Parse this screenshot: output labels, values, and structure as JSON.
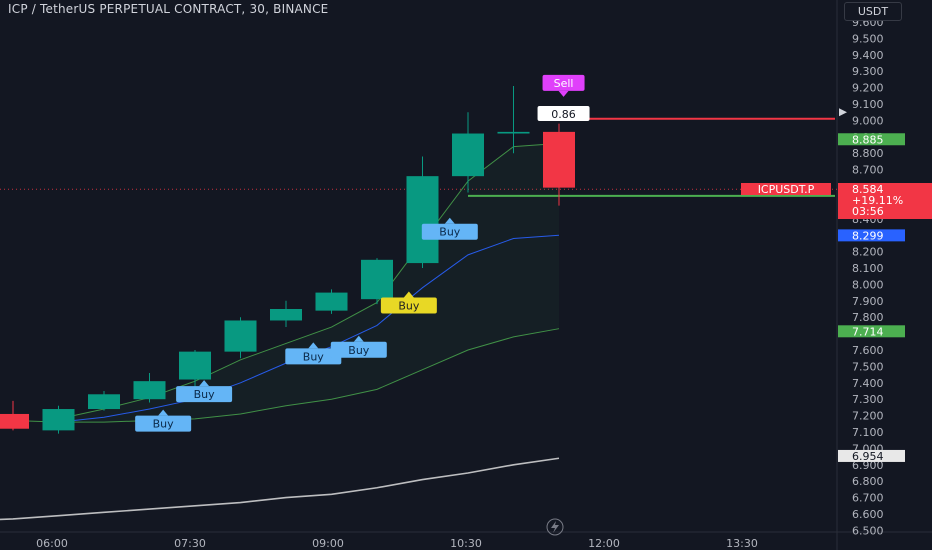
{
  "header": {
    "title": "ICP / TetherUS PERPETUAL CONTRACT, 30, BINANCE",
    "currency": "USDT"
  },
  "colors": {
    "background": "#131722",
    "up": "#089981",
    "down": "#f23645",
    "ma_blue": "#2962ff",
    "band_green": "#4caf50",
    "long_ma": "#e8e8e8",
    "buy_label": "#64b5f6",
    "buy_label_yellow": "#e8d825",
    "sell_label": "#e040fb",
    "price_tag_green": "#4caf50",
    "price_tag_blue": "#2962ff"
  },
  "chart_data": {
    "type": "candlestick",
    "symbol": "ICPUSDT.P",
    "interval": "30",
    "ylim": [
      6.5,
      9.7
    ],
    "y_ticks": [
      "9.600",
      "9.500",
      "9.400",
      "9.300",
      "9.200",
      "9.100",
      "9.000",
      "8.900",
      "8.800",
      "8.700",
      "8.500",
      "8.400",
      "8.200",
      "8.100",
      "8.000",
      "7.900",
      "7.800",
      "7.600",
      "7.500",
      "7.400",
      "7.300",
      "7.200",
      "7.100",
      "7.000",
      "6.900",
      "6.800",
      "6.700",
      "6.600",
      "6.500"
    ],
    "x_ticks": [
      "06:00",
      "07:30",
      "09:00",
      "10:30",
      "12:00",
      "13:30"
    ],
    "candles": [
      {
        "t": 0,
        "o": 7.21,
        "h": 7.29,
        "l": 7.11,
        "c": 7.12
      },
      {
        "t": 1,
        "o": 7.11,
        "h": 7.26,
        "l": 7.09,
        "c": 7.24
      },
      {
        "t": 2,
        "o": 7.24,
        "h": 7.35,
        "l": 7.23,
        "c": 7.33
      },
      {
        "t": 3,
        "o": 7.3,
        "h": 7.46,
        "l": 7.28,
        "c": 7.41
      },
      {
        "t": 4,
        "o": 7.42,
        "h": 7.6,
        "l": 7.37,
        "c": 7.59
      },
      {
        "t": 5,
        "o": 7.59,
        "h": 7.8,
        "l": 7.55,
        "c": 7.78
      },
      {
        "t": 6,
        "o": 7.78,
        "h": 7.9,
        "l": 7.74,
        "c": 7.85
      },
      {
        "t": 7,
        "o": 7.84,
        "h": 7.97,
        "l": 7.82,
        "c": 7.95
      },
      {
        "t": 8,
        "o": 7.91,
        "h": 8.16,
        "l": 7.88,
        "c": 8.15
      },
      {
        "t": 9,
        "o": 8.13,
        "h": 8.78,
        "l": 8.1,
        "c": 8.66
      },
      {
        "t": 10,
        "o": 8.66,
        "h": 9.05,
        "l": 8.56,
        "c": 8.92
      },
      {
        "t": 11,
        "o": 8.92,
        "h": 9.21,
        "l": 8.8,
        "c": 8.93
      },
      {
        "t": 12,
        "o": 8.93,
        "h": 8.98,
        "l": 8.48,
        "c": 8.59
      }
    ],
    "series": [
      {
        "name": "",
        "color": "#2962ff",
        "points": [
          [
            1,
            7.16
          ],
          [
            2,
            7.19
          ],
          [
            3,
            7.24
          ],
          [
            4,
            7.3
          ],
          [
            5,
            7.4
          ],
          [
            6,
            7.52
          ],
          [
            7,
            7.62
          ],
          [
            8,
            7.75
          ],
          [
            9,
            7.98
          ],
          [
            10,
            8.18
          ],
          [
            11,
            8.28
          ],
          [
            12,
            8.3
          ]
        ]
      },
      {
        "name": "",
        "color": "#4caf50",
        "points": [
          [
            0,
            7.17
          ],
          [
            1,
            7.16
          ],
          [
            2,
            7.16
          ],
          [
            3,
            7.17
          ],
          [
            4,
            7.18
          ],
          [
            5,
            7.21
          ],
          [
            6,
            7.26
          ],
          [
            7,
            7.3
          ],
          [
            8,
            7.36
          ],
          [
            9,
            7.48
          ],
          [
            10,
            7.6
          ],
          [
            11,
            7.68
          ],
          [
            12,
            7.73
          ]
        ]
      },
      {
        "name": "",
        "color": "#4caf50",
        "points": [
          [
            1,
            7.18
          ],
          [
            2,
            7.24
          ],
          [
            3,
            7.31
          ],
          [
            4,
            7.41
          ],
          [
            5,
            7.54
          ],
          [
            6,
            7.64
          ],
          [
            7,
            7.74
          ],
          [
            8,
            7.89
          ],
          [
            9,
            8.26
          ],
          [
            10,
            8.63
          ],
          [
            11,
            8.84
          ],
          [
            12,
            8.86
          ]
        ]
      },
      {
        "name": "",
        "color": "#e8e8e8",
        "points": [
          [
            -1,
            6.56
          ],
          [
            0,
            6.57
          ],
          [
            1,
            6.59
          ],
          [
            2,
            6.61
          ],
          [
            3,
            6.63
          ],
          [
            4,
            6.65
          ],
          [
            5,
            6.67
          ],
          [
            6,
            6.7
          ],
          [
            7,
            6.72
          ],
          [
            8,
            6.76
          ],
          [
            9,
            6.81
          ],
          [
            10,
            6.85
          ],
          [
            11,
            6.9
          ],
          [
            12,
            6.94
          ]
        ]
      }
    ],
    "signals": [
      {
        "t": 3.3,
        "price": 7.2,
        "label": "Buy",
        "kind": "buy"
      },
      {
        "t": 4.2,
        "price": 7.38,
        "label": "Buy",
        "kind": "buy"
      },
      {
        "t": 6.6,
        "price": 7.61,
        "label": "Buy",
        "kind": "buy"
      },
      {
        "t": 7.6,
        "price": 7.65,
        "label": "Buy",
        "kind": "buy"
      },
      {
        "t": 8.7,
        "price": 7.92,
        "label": "Buy",
        "kind": "buy-yellow"
      },
      {
        "t": 9.6,
        "price": 8.37,
        "label": "Buy",
        "kind": "buy"
      },
      {
        "t": 12.1,
        "price": 9.18,
        "label": "Sell",
        "kind": "sell"
      }
    ],
    "annotations": {
      "value_box": "0.86",
      "red_level": 9.01,
      "green_level": 8.54,
      "current_price_line": 8.58
    },
    "price_tags": [
      {
        "price": 8.885,
        "text": "8.885",
        "color": "#4caf50"
      },
      {
        "price": 8.299,
        "text": "8.299",
        "color": "#2962ff"
      },
      {
        "price": 7.714,
        "text": "7.714",
        "color": "#4caf50"
      },
      {
        "price": 6.954,
        "text": "6.954",
        "color": "#e8e8e8"
      }
    ],
    "current_price": {
      "symbol_label": "ICPUSDT.P",
      "price": "8.584",
      "change": "+19.11%",
      "countdown": "03:56"
    }
  }
}
